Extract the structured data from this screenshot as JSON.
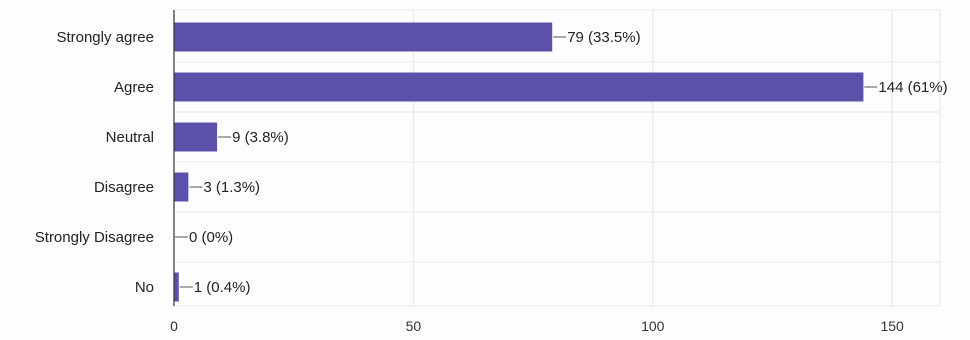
{
  "chart_data": {
    "type": "bar",
    "orientation": "horizontal",
    "categories": [
      "Strongly agree",
      "Agree",
      "Neutral",
      "Disagree",
      "Strongly Disagree",
      "No"
    ],
    "values": [
      79,
      144,
      9,
      3,
      0,
      1
    ],
    "data_labels": [
      "79 (33.5%)",
      "144 (61%)",
      "9 (3.8%)",
      "3 (1.3%)",
      "0 (0%)",
      "1 (0.4%)"
    ],
    "x_ticks": [
      0,
      50,
      100,
      150
    ],
    "xlim": [
      0,
      160
    ],
    "grid": true,
    "bar_color": "#5b51a8",
    "title": "",
    "xlabel": "",
    "ylabel": ""
  }
}
